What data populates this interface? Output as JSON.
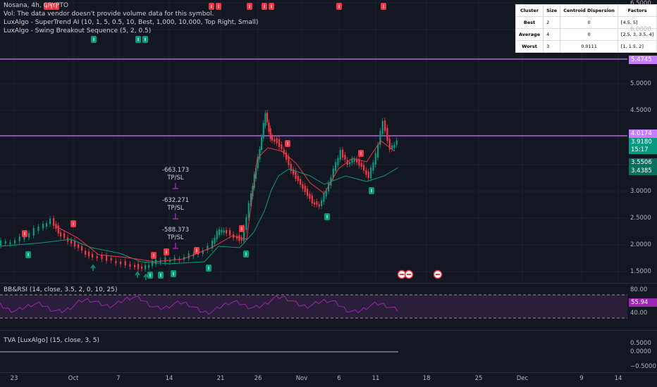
{
  "header": {
    "symbol": "Nosana, 4h, CRYPTO",
    "vol_note": "Vol: The data vendor doesn't provide volume data for this symbol.",
    "indicator1": "LuxAlgo - SuperTrend AI (10, 1, 5, 0.5, 10, Best, 1,000, 10,000, Top Right, Small)",
    "indicator2": "LuxAlgo - Swing Breakout Sequence (5, 2, 0.5)"
  },
  "cluster_table": {
    "headers": [
      "Cluster",
      "Size",
      "Centroid Dispersion",
      "Factors"
    ],
    "rows": [
      [
        "Best",
        "2",
        "0",
        "[4.5, 5]"
      ],
      [
        "Average",
        "4",
        "0",
        "[2.5, 3, 3.5, 4]"
      ],
      [
        "Worst",
        "3",
        "0.0111",
        "[1, 1.5, 2]"
      ]
    ]
  },
  "price_axis": {
    "ticks": [
      "6.5000",
      "6.0000",
      "5.5000",
      "5.0000",
      "4.5000",
      "4.0000",
      "3.5000",
      "3.0000",
      "2.5000",
      "2.0000",
      "1.5000"
    ],
    "tags": {
      "resist_high": "5.4745",
      "resist_mid": "4.0174",
      "last_price": "3.9180",
      "countdown": "15:17",
      "ts_upper": "3.5506",
      "ts_lower": "3.4385"
    }
  },
  "annotations": [
    {
      "value": "-663.173",
      "label": "TP/SL"
    },
    {
      "value": "-632.271",
      "label": "TP/SL"
    },
    {
      "value": "-588.373",
      "label": "TP/SL"
    }
  ],
  "rsi": {
    "title": "BB&RSI (14, close, 3.5, 2, 0, 10, 25)",
    "ticks": [
      "80.00",
      "40.00"
    ],
    "value": "55.94"
  },
  "tva": {
    "title": "TVA [LuxAlgo] (15, close, 3, 5)",
    "ticks": [
      "0.5000",
      "0.0000",
      "−0.5000"
    ]
  },
  "time_axis": [
    "23",
    "Oct",
    "7",
    "14",
    "21",
    "26",
    "Nov",
    "6",
    "11",
    "18",
    "25",
    "Dec",
    "9",
    "14"
  ],
  "colors": {
    "background": "#131722",
    "bull": "#089981",
    "bear": "#f23645",
    "resistance": "#c77dff",
    "rsi_line": "#9c27b0"
  }
}
